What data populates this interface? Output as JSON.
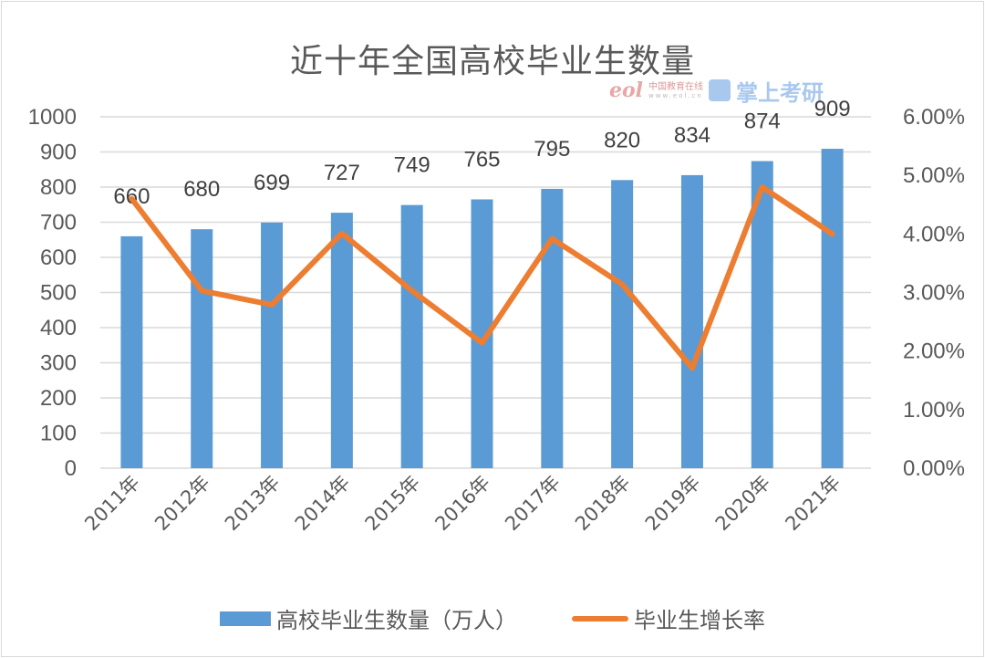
{
  "title": "近十年全国高校毕业生数量",
  "watermark": {
    "eol_text": "eol",
    "eol_cn": "中国教育在线",
    "eol_url": "www.eol.cn",
    "brand": "掌上考研"
  },
  "legend": {
    "bar_label": "高校毕业生数量（万人）",
    "line_label": "毕业生增长率"
  },
  "colors": {
    "bar": "#5b9bd5",
    "line": "#ed7d31",
    "grid": "#d9d9d9",
    "text": "#595959"
  },
  "chart_data": {
    "type": "bar",
    "title": "近十年全国高校毕业生数量",
    "categories": [
      "2011年",
      "2012年",
      "2013年",
      "2014年",
      "2015年",
      "2016年",
      "2017年",
      "2018年",
      "2019年",
      "2020年",
      "2021年"
    ],
    "series": [
      {
        "name": "高校毕业生数量（万人）",
        "type": "bar",
        "axis": "left",
        "values": [
          660,
          680,
          699,
          727,
          749,
          765,
          795,
          820,
          834,
          874,
          909
        ]
      },
      {
        "name": "毕业生增长率",
        "type": "line",
        "axis": "right",
        "values": [
          4.6,
          3.03,
          2.79,
          4.01,
          3.03,
          2.14,
          3.92,
          3.14,
          1.71,
          4.8,
          4.0
        ]
      }
    ],
    "y_left": {
      "ylim": [
        0,
        1000
      ],
      "ticks": [
        "0",
        "100",
        "200",
        "300",
        "400",
        "500",
        "600",
        "700",
        "800",
        "900",
        "1000"
      ]
    },
    "y_right": {
      "ylim": [
        0,
        6
      ],
      "ticks": [
        "0.00%",
        "1.00%",
        "2.00%",
        "3.00%",
        "4.00%",
        "5.00%",
        "6.00%"
      ]
    },
    "xlabel": "",
    "ylabel": "",
    "grid": true,
    "legend_position": "bottom"
  }
}
